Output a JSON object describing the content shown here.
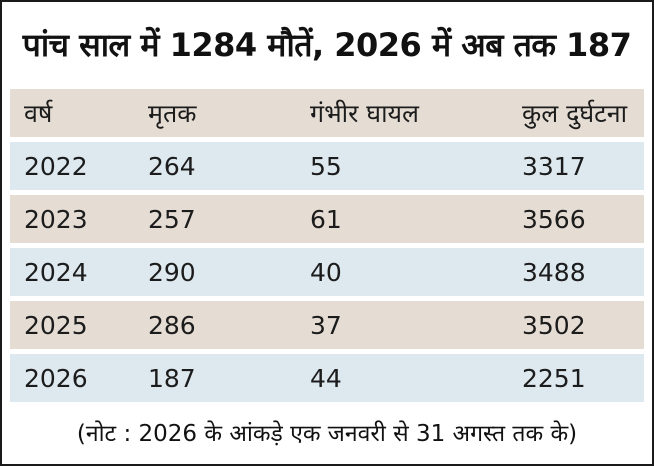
{
  "chart_data": {
    "type": "table",
    "title": "पांच साल में 1284 मौतें, 2026 में अब तक 187",
    "columns": [
      "वर्ष",
      "मृतक",
      "गंभीर घायल",
      "कुल दुर्घटना"
    ],
    "rows": [
      [
        "2022",
        "264",
        "55",
        "3317"
      ],
      [
        "2023",
        "257",
        "61",
        "3566"
      ],
      [
        "2024",
        "290",
        "40",
        "3488"
      ],
      [
        "2025",
        "286",
        "37",
        "3502"
      ],
      [
        "2026",
        "187",
        "44",
        "2251"
      ]
    ],
    "note": "(नोट : 2026 के आंकड़े एक जनवरी से 31 अगस्त तक के)"
  },
  "colors": {
    "header_background": "#e5ddd4",
    "row_blue": "#dde8ef",
    "row_tan": "#e5ddd4",
    "text": "#1c1c1c",
    "border": "#1a1a1a"
  }
}
